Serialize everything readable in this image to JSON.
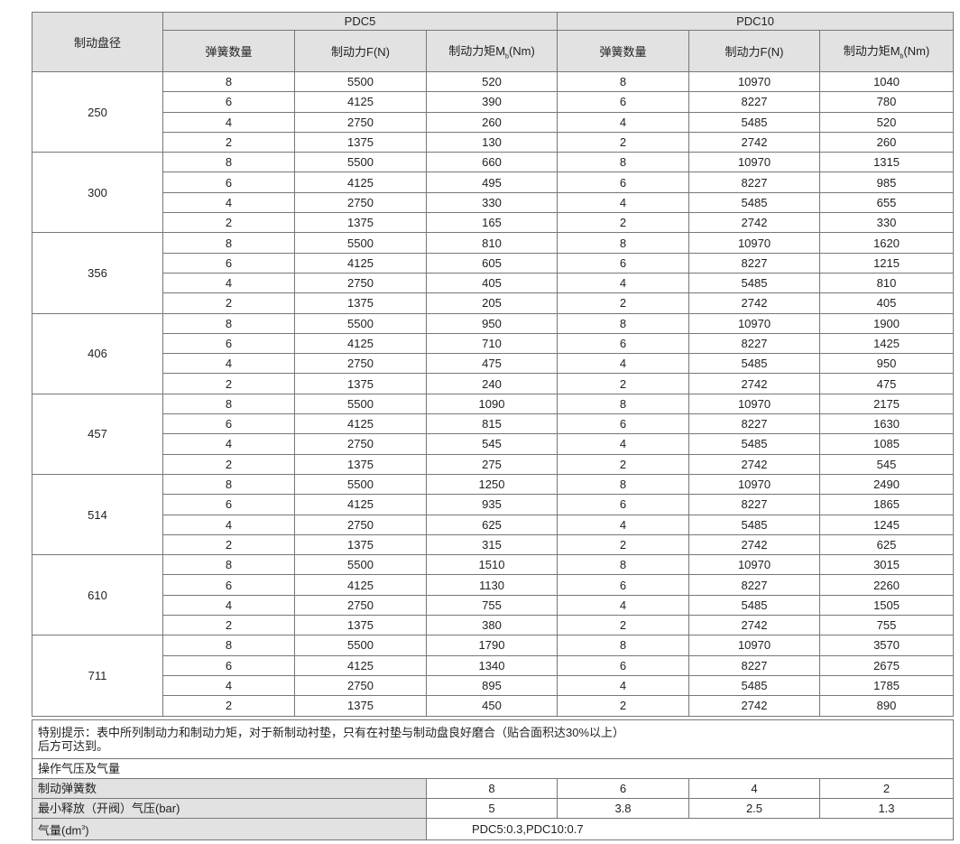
{
  "header": {
    "diameter_label": "制动盘径",
    "models": [
      "PDC5",
      "PDC10"
    ],
    "spring_count_label": "弹簧数量",
    "force_label": "制动力F(N)",
    "torque_label_prefix": "制动力矩M",
    "torque_label_sub": "b",
    "torque_label_suffix": "(Nm)"
  },
  "groups": [
    {
      "diameter": "250",
      "rows": [
        [
          "8",
          "5500",
          "520",
          "8",
          "10970",
          "1040"
        ],
        [
          "6",
          "4125",
          "390",
          "6",
          "8227",
          "780"
        ],
        [
          "4",
          "2750",
          "260",
          "4",
          "5485",
          "520"
        ],
        [
          "2",
          "1375",
          "130",
          "2",
          "2742",
          "260"
        ]
      ]
    },
    {
      "diameter": "300",
      "rows": [
        [
          "8",
          "5500",
          "660",
          "8",
          "10970",
          "1315"
        ],
        [
          "6",
          "4125",
          "495",
          "6",
          "8227",
          "985"
        ],
        [
          "4",
          "2750",
          "330",
          "4",
          "5485",
          "655"
        ],
        [
          "2",
          "1375",
          "165",
          "2",
          "2742",
          "330"
        ]
      ]
    },
    {
      "diameter": "356",
      "rows": [
        [
          "8",
          "5500",
          "810",
          "8",
          "10970",
          "1620"
        ],
        [
          "6",
          "4125",
          "605",
          "6",
          "8227",
          "1215"
        ],
        [
          "4",
          "2750",
          "405",
          "4",
          "5485",
          "810"
        ],
        [
          "2",
          "1375",
          "205",
          "2",
          "2742",
          "405"
        ]
      ]
    },
    {
      "diameter": "406",
      "rows": [
        [
          "8",
          "5500",
          "950",
          "8",
          "10970",
          "1900"
        ],
        [
          "6",
          "4125",
          "710",
          "6",
          "8227",
          "1425"
        ],
        [
          "4",
          "2750",
          "475",
          "4",
          "5485",
          "950"
        ],
        [
          "2",
          "1375",
          "240",
          "2",
          "2742",
          "475"
        ]
      ]
    },
    {
      "diameter": "457",
      "rows": [
        [
          "8",
          "5500",
          "1090",
          "8",
          "10970",
          "2175"
        ],
        [
          "6",
          "4125",
          "815",
          "6",
          "8227",
          "1630"
        ],
        [
          "4",
          "2750",
          "545",
          "4",
          "5485",
          "1085"
        ],
        [
          "2",
          "1375",
          "275",
          "2",
          "2742",
          "545"
        ]
      ]
    },
    {
      "diameter": "514",
      "rows": [
        [
          "8",
          "5500",
          "1250",
          "8",
          "10970",
          "2490"
        ],
        [
          "6",
          "4125",
          "935",
          "6",
          "8227",
          "1865"
        ],
        [
          "4",
          "2750",
          "625",
          "4",
          "5485",
          "1245"
        ],
        [
          "2",
          "1375",
          "315",
          "2",
          "2742",
          "625"
        ]
      ]
    },
    {
      "diameter": "610",
      "rows": [
        [
          "8",
          "5500",
          "1510",
          "8",
          "10970",
          "3015"
        ],
        [
          "6",
          "4125",
          "1130",
          "6",
          "8227",
          "2260"
        ],
        [
          "4",
          "2750",
          "755",
          "4",
          "5485",
          "1505"
        ],
        [
          "2",
          "1375",
          "380",
          "2",
          "2742",
          "755"
        ]
      ]
    },
    {
      "diameter": "711",
      "rows": [
        [
          "8",
          "5500",
          "1790",
          "8",
          "10970",
          "3570"
        ],
        [
          "6",
          "4125",
          "1340",
          "6",
          "8227",
          "2675"
        ],
        [
          "4",
          "2750",
          "895",
          "4",
          "5485",
          "1785"
        ],
        [
          "2",
          "1375",
          "450",
          "2",
          "2742",
          "890"
        ]
      ]
    }
  ],
  "footer": {
    "note_line1": "特别提示：表中所列制动力和制动力矩，对于新制动衬垫，只有在衬垫与制动盘良好磨合（贴合面积达30%以上）",
    "note_line2": "后方可达到。",
    "section_title": "操作气压及气量",
    "spring_row_label": "制动弹簧数",
    "spring_values": [
      "8",
      "6",
      "4",
      "2"
    ],
    "pressure_row_label": "最小释放（开阀）气压(bar)",
    "pressure_values": [
      "5",
      "3.8",
      "2.5",
      "1.3"
    ],
    "air_row_label_prefix": "气量(dm",
    "air_row_label_sup": "3",
    "air_row_label_suffix": ")",
    "air_value": "PDC5:0.3,PDC10:0.7"
  }
}
